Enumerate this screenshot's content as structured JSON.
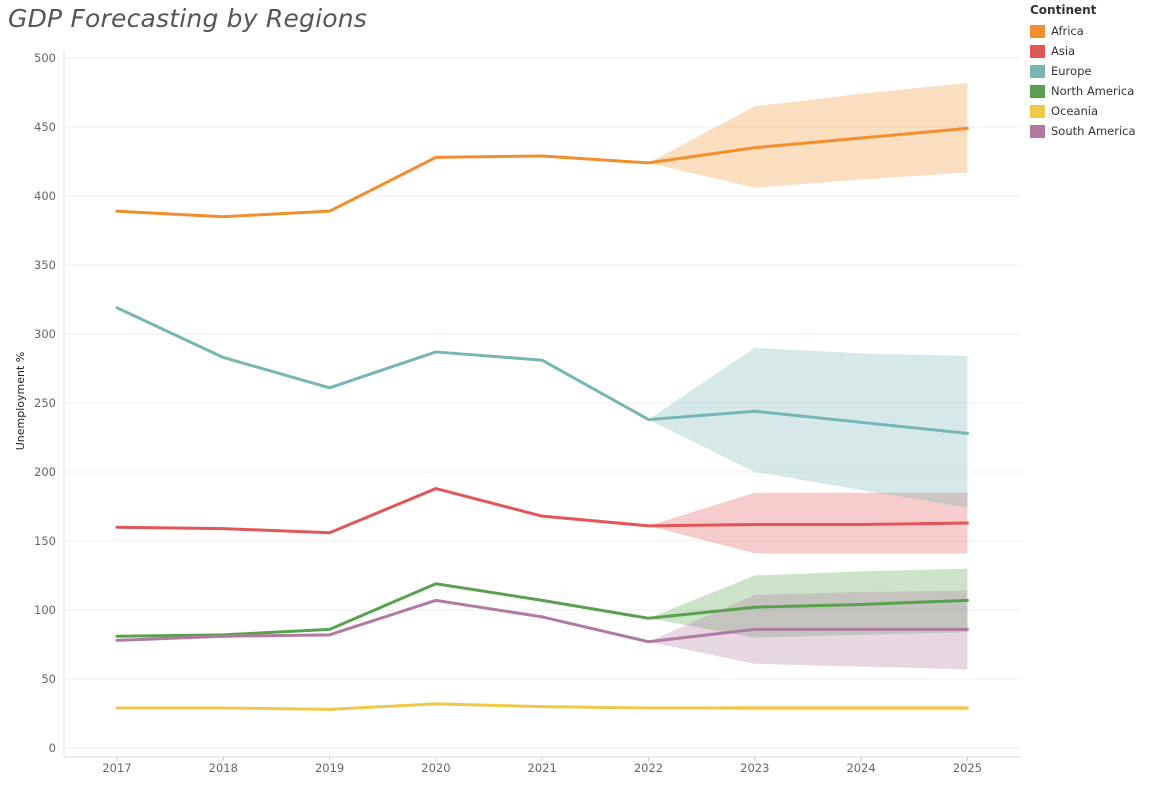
{
  "chart_data": {
    "type": "line",
    "title": "GDP Forecasting by Regions",
    "xlabel": "",
    "ylabel": "Unemployment %",
    "x": [
      "2017",
      "2018",
      "2019",
      "2020",
      "2021",
      "2022",
      "2023",
      "2024",
      "2025"
    ],
    "ylim": [
      0,
      500
    ],
    "yticks": [
      0,
      50,
      100,
      150,
      200,
      250,
      300,
      350,
      400,
      450,
      500
    ],
    "grid": "horizontal",
    "legend": {
      "title": "Continent",
      "position": "top-right"
    },
    "forecast_start": "2022",
    "series": [
      {
        "name": "Africa",
        "color": "#f28e2b",
        "values": [
          389,
          385,
          389,
          428,
          429,
          424,
          435,
          442,
          449
        ],
        "band_low": [
          null,
          null,
          null,
          null,
          null,
          424,
          406,
          412,
          417
        ],
        "band_high": [
          null,
          null,
          null,
          null,
          null,
          424,
          465,
          474,
          482
        ]
      },
      {
        "name": "Asia",
        "color": "#e15759",
        "values": [
          160,
          159,
          156,
          188,
          168,
          161,
          162,
          162,
          163
        ],
        "band_low": [
          null,
          null,
          null,
          null,
          null,
          161,
          141,
          141,
          141
        ],
        "band_high": [
          null,
          null,
          null,
          null,
          null,
          161,
          185,
          185,
          185
        ]
      },
      {
        "name": "Europe",
        "color": "#76b7b2",
        "values": [
          319,
          283,
          261,
          287,
          281,
          238,
          244,
          236,
          228
        ],
        "band_low": [
          null,
          null,
          null,
          null,
          null,
          238,
          200,
          187,
          174
        ],
        "band_high": [
          null,
          null,
          null,
          null,
          null,
          238,
          290,
          286,
          284
        ]
      },
      {
        "name": "North America",
        "color": "#59a14f",
        "values": [
          81,
          82,
          86,
          119,
          107,
          94,
          102,
          104,
          107
        ],
        "band_low": [
          null,
          null,
          null,
          null,
          null,
          94,
          80,
          82,
          84
        ],
        "band_high": [
          null,
          null,
          null,
          null,
          null,
          94,
          125,
          128,
          130
        ]
      },
      {
        "name": "Oceania",
        "color": "#edc948",
        "values": [
          29,
          29,
          28,
          32,
          30,
          29,
          29,
          29,
          29
        ],
        "band_low": [
          null,
          null,
          null,
          null,
          null,
          29,
          27,
          27,
          27
        ],
        "band_high": [
          null,
          null,
          null,
          null,
          null,
          29,
          31,
          31,
          31
        ]
      },
      {
        "name": "South America",
        "color": "#b07aa1",
        "values": [
          78,
          81,
          82,
          107,
          95,
          77,
          86,
          86,
          86
        ],
        "band_low": [
          null,
          null,
          null,
          null,
          null,
          77,
          61,
          59,
          57
        ],
        "band_high": [
          null,
          null,
          null,
          null,
          null,
          77,
          111,
          113,
          114
        ]
      }
    ]
  }
}
